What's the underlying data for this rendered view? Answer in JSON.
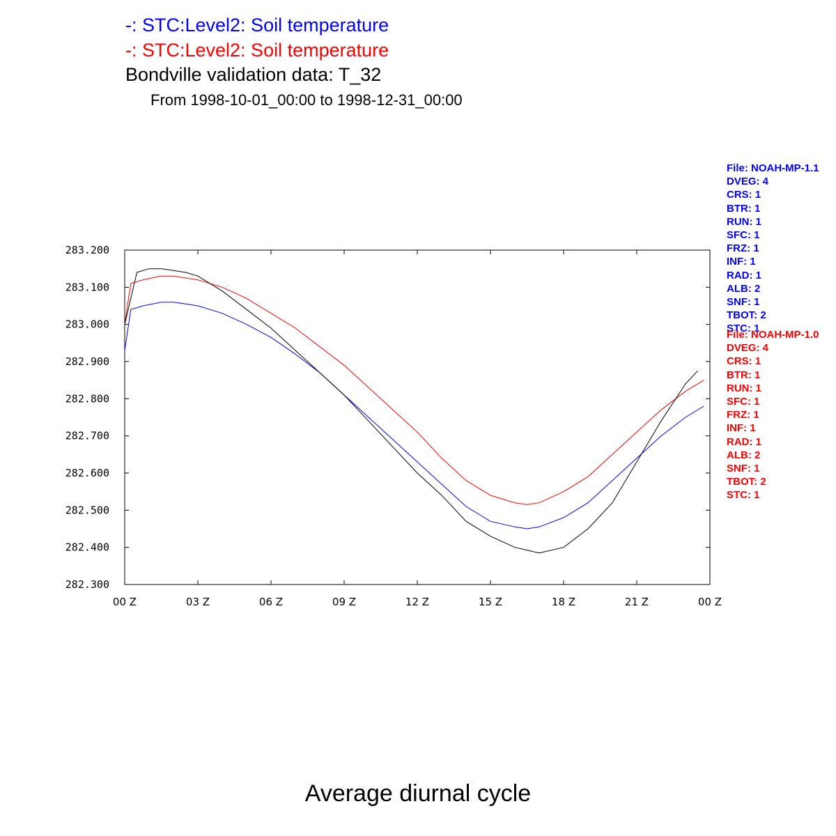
{
  "titles": {
    "line1": "-: STC:Level2: Soil temperature",
    "line2": "-: STC:Level2: Soil temperature",
    "line3": "Bondville validation data: T_32",
    "line4": "From 1998-10-01_00:00 to 1998-12-31_00:00"
  },
  "footer": "Average diurnal cycle",
  "colors": {
    "blue": "#0000ff",
    "red": "#ff0000",
    "black": "#000000"
  },
  "meta_blue": [
    "File: NOAH-MP-1.1",
    "DVEG: 4",
    "CRS: 1",
    "BTR: 1",
    "RUN: 1",
    "SFC: 1",
    "FRZ: 1",
    "INF: 1",
    "RAD: 1",
    "ALB: 2",
    "SNF: 1",
    "TBOT: 2",
    "STC: 1"
  ],
  "meta_red": [
    "File: NOAH-MP-1.0",
    "DVEG: 4",
    "CRS: 1",
    "BTR: 1",
    "RUN: 1",
    "SFC: 1",
    "FRZ: 1",
    "INF: 1",
    "RAD: 1",
    "ALB: 2",
    "SNF: 1",
    "TBOT: 2",
    "STC: 1"
  ],
  "chart_data": {
    "type": "line",
    "title": "Bondville validation data: T_32",
    "xlabel": "",
    "ylabel": "",
    "xlim": [
      0,
      24
    ],
    "ylim": [
      282.3,
      283.2
    ],
    "x_ticks": [
      "00 Z",
      "03 Z",
      "06 Z",
      "09 Z",
      "12 Z",
      "15 Z",
      "18 Z",
      "21 Z",
      "00 Z"
    ],
    "y_ticks": [
      "283.200",
      "283.100",
      "283.000",
      "282.900",
      "282.800",
      "282.700",
      "282.600",
      "282.500",
      "282.400",
      "282.300"
    ],
    "grid": false,
    "series": [
      {
        "color": "#0000ff",
        "x": [
          0,
          0.25,
          0.75,
          1.5,
          2.0,
          2.5,
          3.0,
          4.0,
          5.0,
          6.0,
          7.0,
          8.0,
          9.0,
          10.0,
          11.0,
          12.0,
          13.0,
          14.0,
          15.0,
          16.0,
          16.5,
          17.0,
          18.0,
          19.0,
          20.0,
          21.0,
          22.0,
          23.0,
          23.75
        ],
        "values": [
          282.93,
          283.04,
          283.05,
          283.06,
          283.06,
          283.055,
          283.05,
          283.03,
          283.0,
          282.965,
          282.92,
          282.87,
          282.81,
          282.75,
          282.69,
          282.63,
          282.57,
          282.51,
          282.47,
          282.455,
          282.45,
          282.455,
          282.48,
          282.52,
          282.58,
          282.64,
          282.7,
          282.75,
          282.78
        ]
      },
      {
        "color": "#ff0000",
        "x": [
          0,
          0.25,
          0.75,
          1.5,
          2.0,
          2.5,
          3.0,
          4.0,
          5.0,
          6.0,
          7.0,
          8.0,
          9.0,
          10.0,
          11.0,
          12.0,
          13.0,
          14.0,
          15.0,
          16.0,
          16.5,
          17.0,
          18.0,
          19.0,
          20.0,
          21.0,
          22.0,
          23.0,
          23.75
        ],
        "values": [
          283.0,
          283.11,
          283.12,
          283.13,
          283.13,
          283.125,
          283.12,
          283.1,
          283.07,
          283.03,
          282.99,
          282.94,
          282.89,
          282.83,
          282.77,
          282.71,
          282.64,
          282.58,
          282.54,
          282.52,
          282.515,
          282.52,
          282.55,
          282.59,
          282.65,
          282.71,
          282.77,
          282.82,
          282.85
        ]
      },
      {
        "color": "#000000",
        "x": [
          0,
          0.5,
          1.0,
          1.5,
          2.0,
          2.5,
          3.0,
          4.0,
          5.0,
          6.0,
          7.0,
          8.0,
          9.0,
          10.0,
          11.0,
          12.0,
          13.0,
          14.0,
          15.0,
          16.0,
          17.0,
          18.0,
          19.0,
          20.0,
          21.0,
          22.0,
          23.0,
          23.5
        ],
        "values": [
          283.0,
          283.14,
          283.15,
          283.15,
          283.145,
          283.14,
          283.13,
          283.09,
          283.04,
          282.99,
          282.93,
          282.87,
          282.81,
          282.74,
          282.67,
          282.6,
          282.54,
          282.47,
          282.43,
          282.4,
          282.385,
          282.4,
          282.45,
          282.52,
          282.63,
          282.74,
          282.84,
          282.875
        ]
      }
    ]
  }
}
